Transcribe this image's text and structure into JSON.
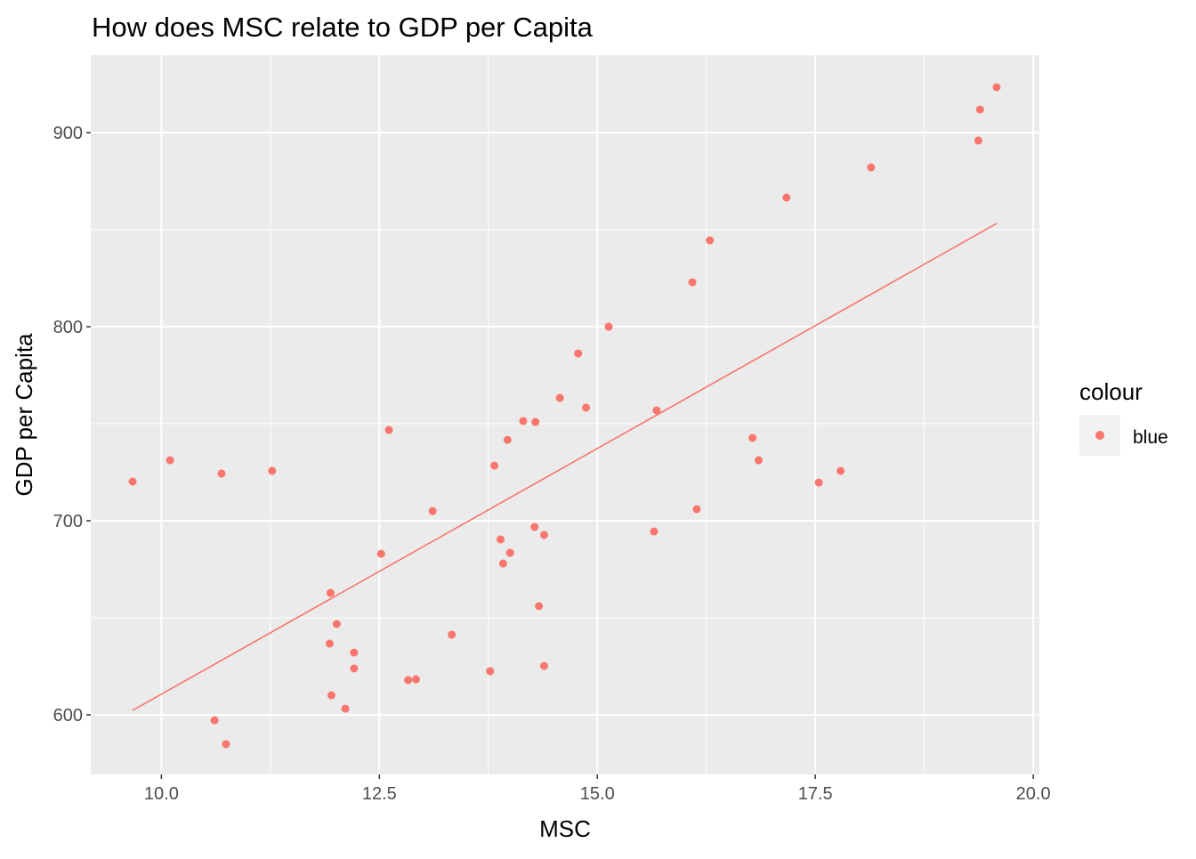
{
  "chart_data": {
    "type": "scatter",
    "title": "How does MSC relate to GDP per Capita",
    "xlabel": "MSC",
    "ylabel": "GDP per Capita",
    "xlim": [
      9.19,
      20.07
    ],
    "ylim": [
      569.3,
      939.9
    ],
    "x_ticks": [
      10.0,
      12.5,
      15.0,
      17.5,
      20.0
    ],
    "x_tick_labels": [
      "10.0",
      "12.5",
      "15.0",
      "17.5",
      "20.0"
    ],
    "y_ticks": [
      600,
      700,
      800,
      900
    ],
    "y_tick_labels": [
      "600",
      "700",
      "800",
      "900"
    ],
    "grid": true,
    "legend": {
      "title": "colour",
      "entries": [
        "blue"
      ],
      "placement": "right"
    },
    "point_color": "#F8766D",
    "panel_background": "#EBEBEB",
    "points": [
      [
        9.67,
        720.2
      ],
      [
        10.1,
        731.2
      ],
      [
        10.69,
        724.3
      ],
      [
        11.27,
        725.7
      ],
      [
        10.61,
        597.2
      ],
      [
        10.74,
        584.9
      ],
      [
        11.94,
        662.8
      ],
      [
        12.01,
        646.8
      ],
      [
        11.93,
        636.7
      ],
      [
        12.21,
        632.1
      ],
      [
        12.21,
        623.9
      ],
      [
        11.95,
        610.1
      ],
      [
        12.11,
        603.2
      ],
      [
        12.52,
        683.0
      ],
      [
        12.61,
        746.8
      ],
      [
        13.11,
        705.0
      ],
      [
        13.33,
        641.3
      ],
      [
        12.83,
        617.9
      ],
      [
        12.92,
        618.3
      ],
      [
        13.77,
        622.5
      ],
      [
        13.82,
        728.4
      ],
      [
        13.89,
        690.4
      ],
      [
        13.92,
        678.0
      ],
      [
        14.0,
        683.5
      ],
      [
        13.97,
        741.7
      ],
      [
        14.15,
        751.4
      ],
      [
        14.29,
        750.9
      ],
      [
        14.28,
        696.8
      ],
      [
        14.39,
        692.7
      ],
      [
        14.33,
        656.0
      ],
      [
        14.39,
        625.2
      ],
      [
        14.57,
        763.3
      ],
      [
        14.78,
        786.2
      ],
      [
        14.87,
        758.3
      ],
      [
        15.13,
        800.0
      ],
      [
        15.68,
        756.9
      ],
      [
        15.65,
        694.5
      ],
      [
        16.09,
        822.9
      ],
      [
        16.29,
        844.5
      ],
      [
        16.14,
        706.0
      ],
      [
        16.78,
        742.7
      ],
      [
        16.85,
        731.2
      ],
      [
        17.17,
        866.5
      ],
      [
        17.54,
        719.7
      ],
      [
        17.79,
        725.7
      ],
      [
        18.14,
        882.1
      ],
      [
        19.37,
        895.9
      ],
      [
        19.39,
        911.9
      ],
      [
        19.58,
        923.4
      ]
    ],
    "fit_line": {
      "x": [
        9.67,
        19.58
      ],
      "y": [
        602.3,
        853.2
      ]
    }
  }
}
